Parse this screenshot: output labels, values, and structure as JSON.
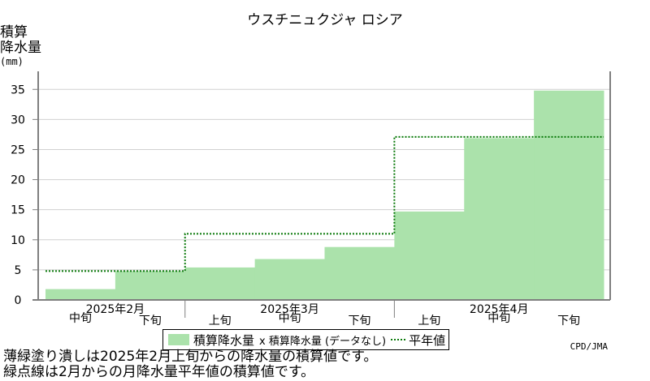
{
  "title": "ウスチニュクジャ ロシア",
  "ylabel_line1": "積算",
  "ylabel_line2": "降水量",
  "ylabel_unit": "(mm)",
  "legend": {
    "bar_label": "積算降水量",
    "mark_label": "x 積算降水量 (データなし)",
    "line_label": "平年値"
  },
  "credit": "CPD/JMA",
  "notes": [
    "薄緑塗り潰しは2025年2月上旬からの降水量の積算値です。",
    "緑点線は2月からの月降水量平年値の積算値です。"
  ],
  "chart_data": {
    "type": "bar",
    "categories": [
      "2025年2月 中旬",
      "2025年2月 下旬",
      "2025年3月 上旬",
      "2025年3月 中旬",
      "2025年3月 下旬",
      "2025年4月 上旬",
      "2025年4月 中旬",
      "2025年4月 下旬"
    ],
    "period_labels": [
      "中旬",
      "下旬",
      "上旬",
      "中旬",
      "下旬",
      "上旬",
      "中旬",
      "下旬"
    ],
    "month_labels": [
      "2025年2月",
      "2025年3月",
      "2025年4月"
    ],
    "series": [
      {
        "name": "積算降水量",
        "values": [
          1.8,
          4.8,
          5.4,
          6.8,
          8.8,
          14.7,
          26.9,
          34.8
        ]
      }
    ],
    "normal_line": {
      "name": "平年値",
      "segments": [
        {
          "from": 0.0,
          "to": 2.0,
          "value": 4.8
        },
        {
          "from": 2.0,
          "to": 5.0,
          "value": 11.0
        },
        {
          "from": 5.0,
          "to": 8.0,
          "value": 27.1
        }
      ]
    },
    "ylim": [
      0,
      38
    ],
    "yticks": [
      0,
      5,
      10,
      15,
      20,
      25,
      30,
      35
    ],
    "colors": {
      "bar": "#abe2ab",
      "normal_line": "#0a7a0a",
      "axis": "#7f7f7f",
      "grid": "#d0d0d0"
    }
  }
}
